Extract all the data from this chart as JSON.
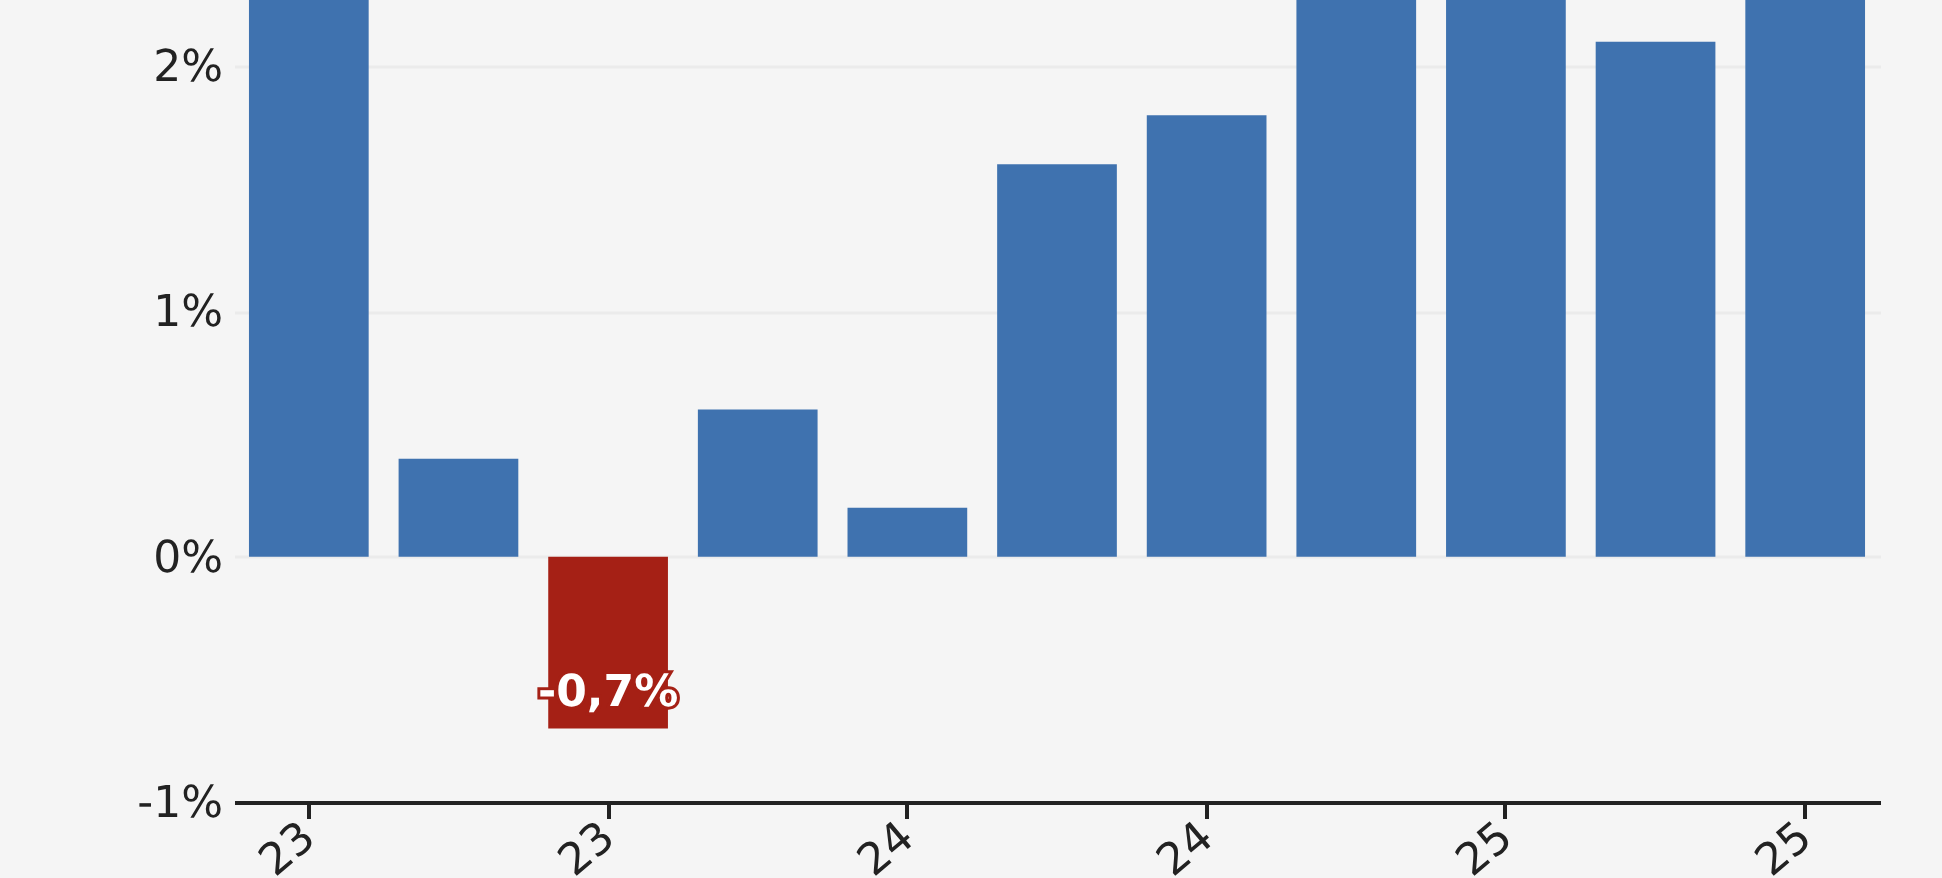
{
  "chart_data": {
    "type": "bar",
    "categories": [
      "23",
      null,
      "23",
      null,
      "24",
      null,
      "24",
      null,
      "25",
      null,
      "25"
    ],
    "values": [
      2.27,
      0.4,
      -0.7,
      0.6,
      0.2,
      1.6,
      1.8,
      2.27,
      2.27,
      2.1,
      2.27
    ],
    "colors": [
      "#3f72af",
      "#3f72af",
      "#a52015",
      "#3f72af",
      "#3f72af",
      "#3f72af",
      "#3f72af",
      "#3f72af",
      "#3f72af",
      "#3f72af",
      "#3f72af"
    ],
    "value_labels": [
      null,
      null,
      "-0,7%",
      null,
      null,
      null,
      null,
      null,
      null,
      null,
      null
    ],
    "ylim": [
      -1,
      2.27
    ],
    "yticks": [
      {
        "value": -1,
        "label": "-1%"
      },
      {
        "value": 0,
        "label": "0%"
      },
      {
        "value": 1,
        "label": "1%"
      },
      {
        "value": 2,
        "label": "2%"
      }
    ],
    "grid": "y"
  }
}
